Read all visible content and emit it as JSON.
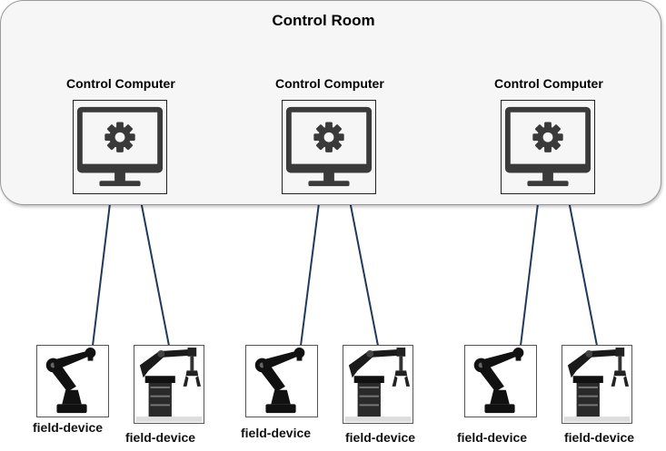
{
  "room": {
    "title": "Control Room"
  },
  "computers": [
    {
      "label": "Control Computer",
      "icon": "monitor-gear-icon"
    },
    {
      "label": "Control Computer",
      "icon": "monitor-gear-icon"
    },
    {
      "label": "Control Computer",
      "icon": "monitor-gear-icon"
    }
  ],
  "devices": [
    {
      "label": "field-device",
      "icon": "robot-arm-icon"
    },
    {
      "label": "field-device",
      "icon": "robot-gripper-icon"
    },
    {
      "label": "field-device",
      "icon": "robot-arm-icon"
    },
    {
      "label": "field-device",
      "icon": "robot-gripper-icon"
    },
    {
      "label": "field-device",
      "icon": "robot-arm-icon"
    },
    {
      "label": "field-device",
      "icon": "robot-gripper-icon"
    }
  ],
  "colors": {
    "link": "#1f3a5a",
    "icon": "#3a3a3a",
    "room_fill": "#f6f6f6"
  }
}
